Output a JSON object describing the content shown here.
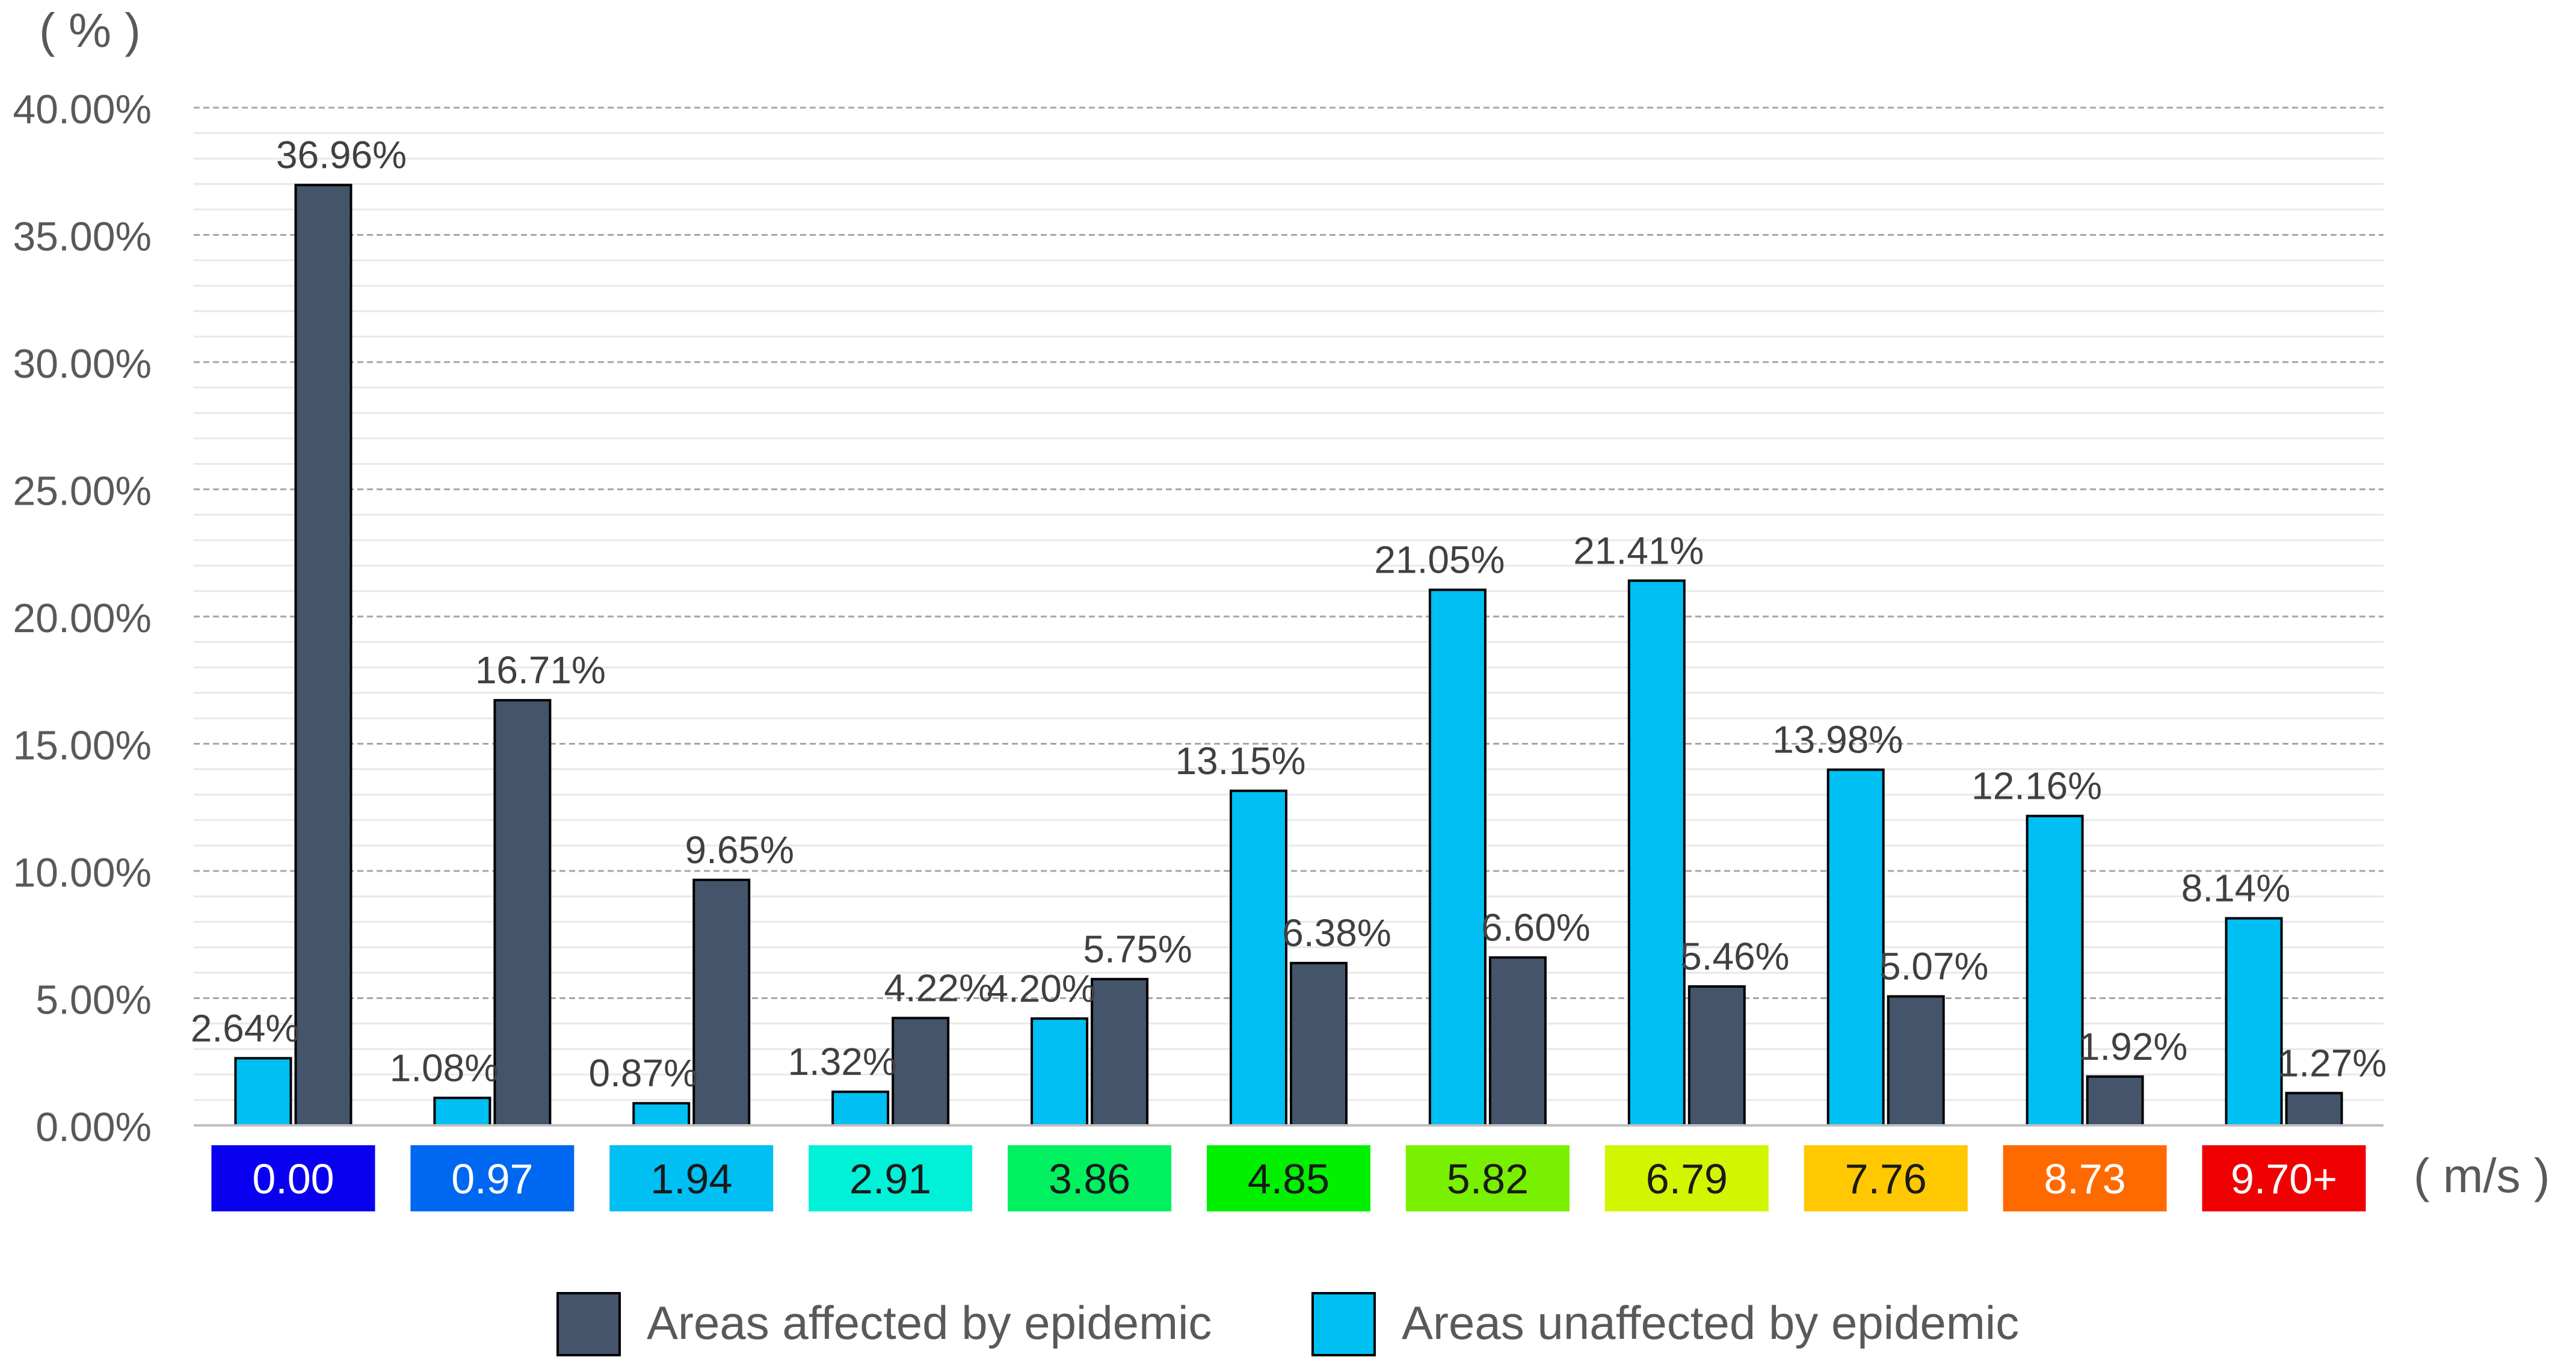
{
  "chart_data": {
    "type": "bar",
    "title": "",
    "ylabel": "( % )",
    "xlabel": "( m/s )",
    "ylim": [
      0,
      40
    ],
    "yticks": [
      "0.00%",
      "5.00%",
      "10.00%",
      "15.00%",
      "20.00%",
      "25.00%",
      "30.00%",
      "35.00%",
      "40.00%"
    ],
    "categories": [
      "0.00",
      "0.97",
      "1.94",
      "2.91",
      "3.86",
      "4.85",
      "5.82",
      "6.79",
      "7.76",
      "8.73",
      "9.70+"
    ],
    "category_colors": [
      "#0a00f0",
      "#0068f0",
      "#00bff3",
      "#00f0d8",
      "#00f060",
      "#00f000",
      "#78f000",
      "#d2f500",
      "#ffc800",
      "#ff6a00",
      "#f00000"
    ],
    "category_text_colors": [
      "#ffffff",
      "#ffffff",
      "#1a1a1a",
      "#1a1a1a",
      "#1a1a1a",
      "#1a1a1a",
      "#1a1a1a",
      "#1a1a1a",
      "#1a1a1a",
      "#ffffff",
      "#ffffff"
    ],
    "series": [
      {
        "name": "Areas unaffected by epidemic",
        "color": "#00bff3",
        "values": [
          2.64,
          1.08,
          0.87,
          1.32,
          4.2,
          13.15,
          21.05,
          21.41,
          13.98,
          12.16,
          8.14
        ],
        "labels": [
          "2.64%",
          "1.08%",
          "0.87%",
          "1.32%",
          "4.20%",
          "13.15%",
          "21.05%",
          "21.41%",
          "13.98%",
          "12.16%",
          "8.14%"
        ]
      },
      {
        "name": "Areas affected by epidemic",
        "color": "#44546a",
        "values": [
          36.96,
          16.71,
          9.65,
          4.22,
          5.75,
          6.38,
          6.6,
          5.46,
          5.07,
          1.92,
          1.27
        ],
        "labels": [
          "36.96%",
          "16.71%",
          "9.65%",
          "4.22%",
          "5.75%",
          "6.38%",
          "6.60%",
          "5.46%",
          "5.07%",
          "1.92%",
          "1.27%"
        ]
      }
    ],
    "legend": {
      "position": "bottom",
      "entries": [
        "Areas affected by epidemic",
        "Areas unaffected by epidemic"
      ]
    },
    "grid": true
  }
}
